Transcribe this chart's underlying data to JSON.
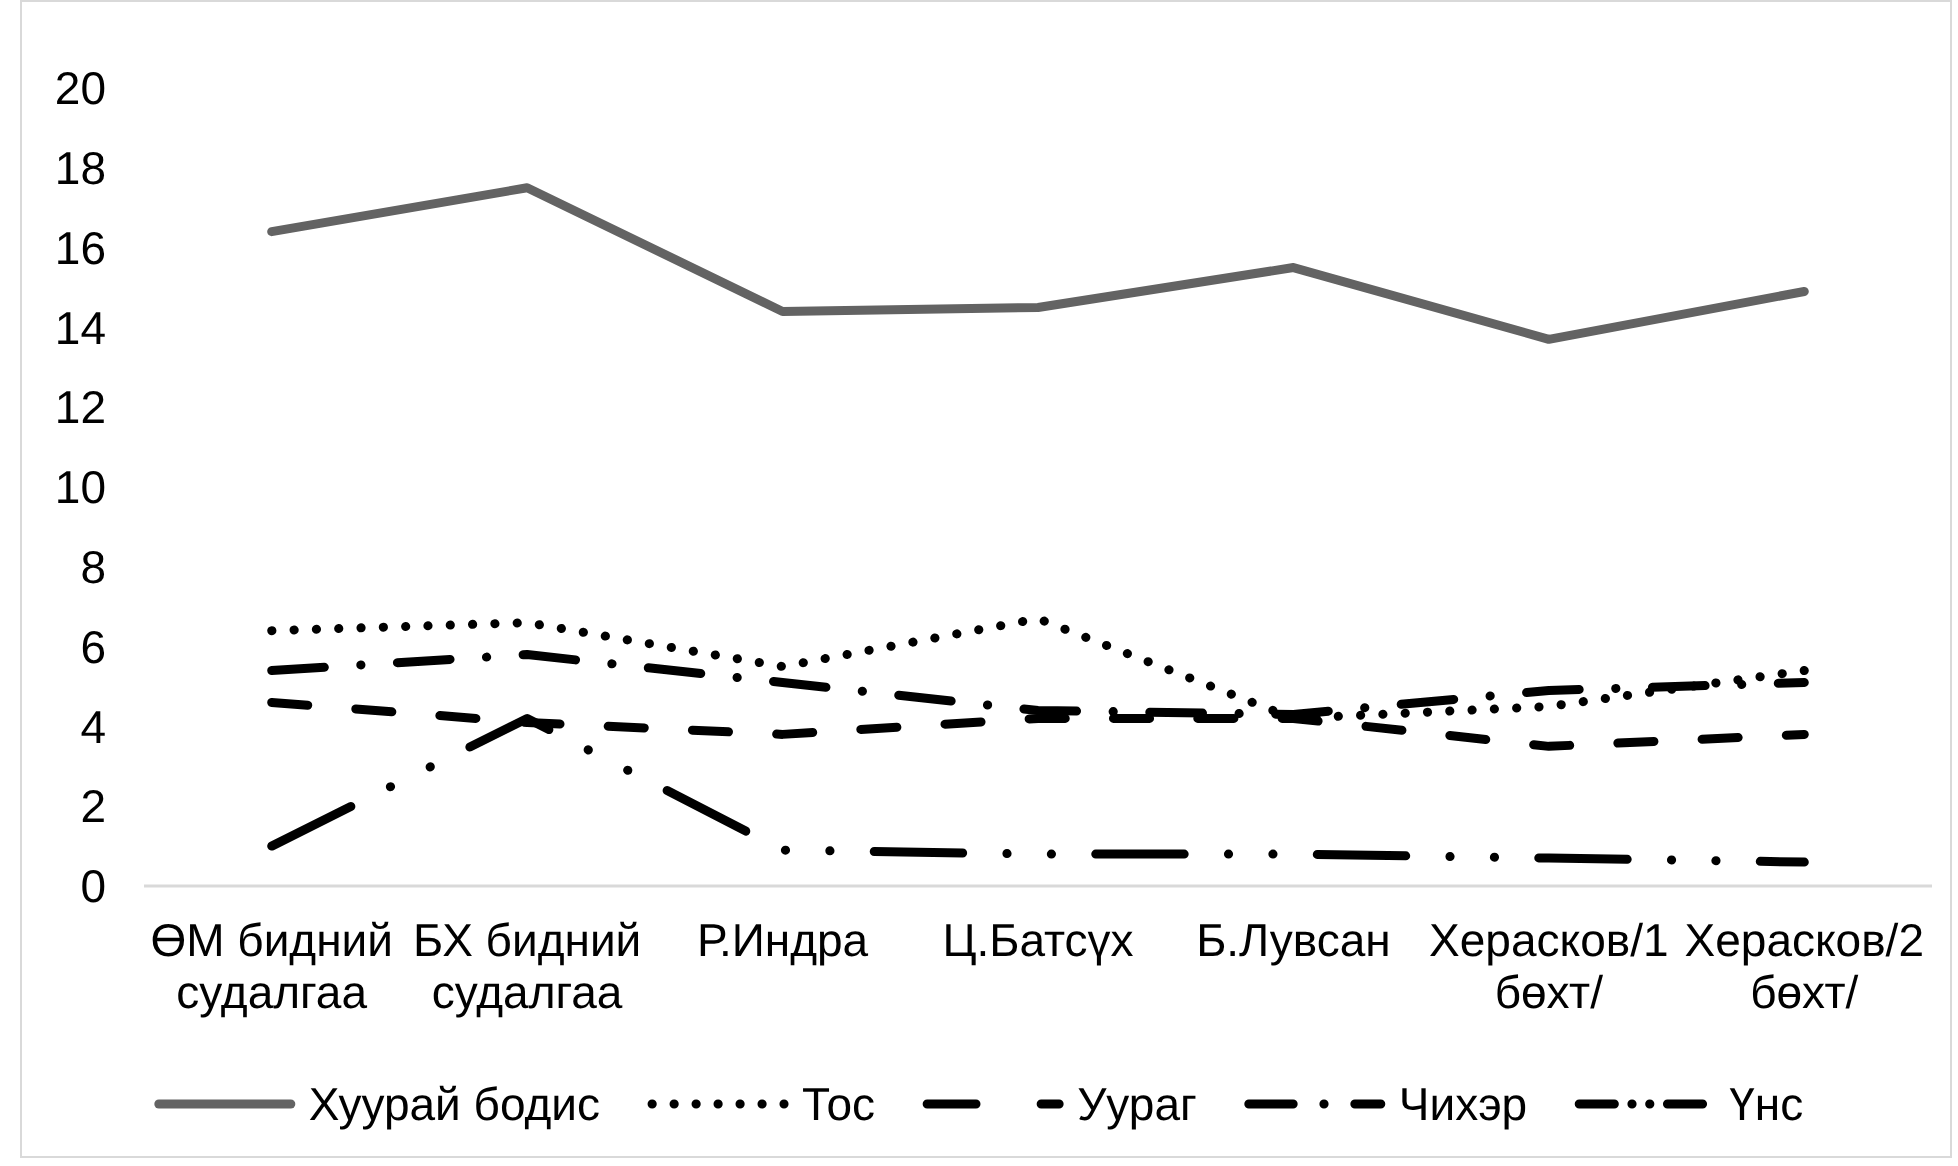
{
  "chart_data": {
    "type": "line",
    "categories": [
      "ӨМ бидний судалгаа",
      "БХ бидний судалгаа",
      "Р.Индра",
      "Ц.Батсүх",
      "Б.Лувсан",
      "Херасков/1 бөхт/",
      "Херасков/2 бөхт/"
    ],
    "series": [
      {
        "name": "Хуурай бодис",
        "color": "#636363",
        "line_style": "solid",
        "values": [
          16.4,
          17.5,
          14.4,
          14.5,
          15.5,
          13.7,
          14.9
        ]
      },
      {
        "name": "Тос",
        "color": "#000000",
        "line_style": "dotted",
        "values": [
          6.4,
          6.6,
          5.5,
          6.7,
          4.2,
          4.5,
          5.4
        ]
      },
      {
        "name": "Уураг",
        "color": "#000000",
        "line_style": "dashed",
        "values": [
          4.6,
          4.1,
          3.8,
          4.2,
          4.2,
          3.5,
          3.8
        ]
      },
      {
        "name": "Чихэр",
        "color": "#000000",
        "line_style": "dashdot",
        "values": [
          5.4,
          5.8,
          5.1,
          4.4,
          4.3,
          4.9,
          5.1
        ]
      },
      {
        "name": "Үнс",
        "color": "#000000",
        "line_style": "dashdotdot",
        "values": [
          1.0,
          4.2,
          0.9,
          0.8,
          0.8,
          0.7,
          0.6
        ]
      }
    ],
    "ylim": [
      0,
      20
    ],
    "yticks": [
      0,
      2,
      4,
      6,
      8,
      10,
      12,
      14,
      16,
      18,
      20
    ],
    "grid": false,
    "legend": "bottom",
    "marker": "none"
  }
}
